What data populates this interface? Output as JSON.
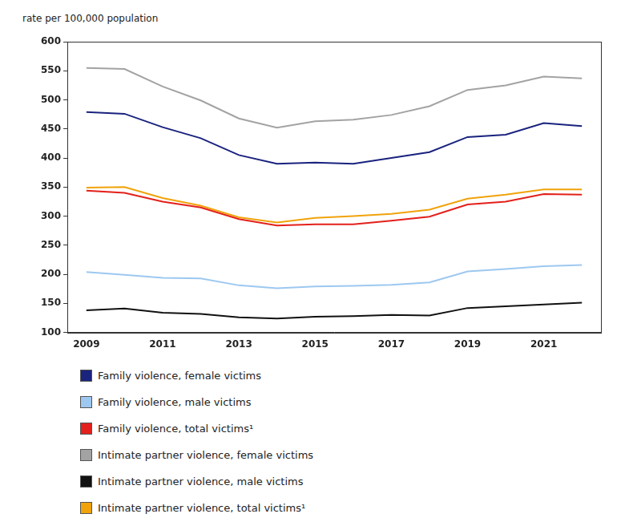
{
  "chart_data": {
    "type": "line",
    "y_label": "rate per 100,000 population",
    "categories": [
      "2009",
      null,
      "2011",
      null,
      "2013",
      null,
      "2015",
      null,
      "2017",
      null,
      "2019",
      null,
      "2021",
      null
    ],
    "series": [
      {
        "name": "Family violence, female victims",
        "color": "#1a237e",
        "values": [
          479,
          476,
          453,
          434,
          405,
          390,
          392,
          390,
          400,
          410,
          436,
          440,
          460,
          455
        ]
      },
      {
        "name": "Family violence, male victims",
        "color": "#9dc8f0",
        "values": [
          204,
          199,
          194,
          193,
          181,
          176,
          179,
          180,
          182,
          186,
          205,
          209,
          214,
          216
        ]
      },
      {
        "name": "Family violence, total victims¹",
        "color": "#e3201b",
        "values": [
          344,
          340,
          325,
          315,
          295,
          284,
          286,
          286,
          292,
          299,
          320,
          325,
          338,
          337
        ]
      },
      {
        "name": "Intimate partner violence, female victims",
        "color": "#a3a3a3",
        "values": [
          555,
          553,
          523,
          499,
          468,
          452,
          463,
          466,
          474,
          489,
          517,
          525,
          540,
          537
        ]
      },
      {
        "name": "Intimate partner violence, male victims",
        "color": "#111111",
        "values": [
          138,
          141,
          134,
          132,
          126,
          124,
          127,
          128,
          130,
          129,
          142,
          145,
          148,
          151
        ]
      },
      {
        "name": "Intimate partner violence, total victims¹",
        "color": "#f0a30a",
        "values": [
          349,
          350,
          331,
          318,
          298,
          289,
          297,
          300,
          304,
          311,
          330,
          337,
          346,
          346
        ]
      }
    ],
    "ylim": [
      100,
      600
    ],
    "yticks": [
      100,
      150,
      200,
      250,
      300,
      350,
      400,
      450,
      500,
      550,
      600
    ],
    "grid": false,
    "legend": "bottom"
  }
}
